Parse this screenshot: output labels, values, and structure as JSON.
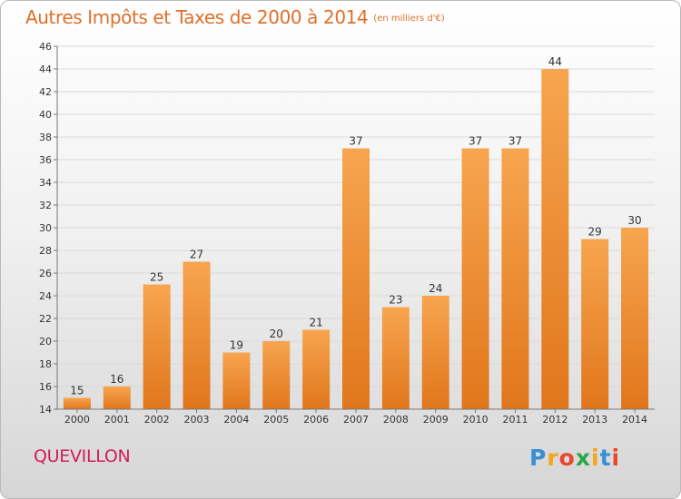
{
  "header": {
    "title": "Autres Impôts et Taxes de 2000 à 2014",
    "subtitle": "(en milliers d'€)"
  },
  "footer": {
    "location": "QUEVILLON",
    "brand_letters": [
      "P",
      "r",
      "o",
      "x",
      "i",
      "t",
      "i"
    ],
    "brand_colors": [
      "#3a8fd6",
      "#f2a51d",
      "#e8482b",
      "#2aa745",
      "#f2a51d",
      "#3a8fd6",
      "#e8482b"
    ]
  },
  "chart_data": {
    "type": "bar",
    "categories": [
      "2000",
      "2001",
      "2002",
      "2003",
      "2004",
      "2005",
      "2006",
      "2007",
      "2008",
      "2009",
      "2010",
      "2011",
      "2012",
      "2013",
      "2014"
    ],
    "values": [
      15,
      16,
      25,
      27,
      19,
      20,
      21,
      37,
      23,
      24,
      37,
      37,
      44,
      29,
      30
    ],
    "ylim": [
      14,
      46
    ],
    "yticks": [
      14,
      16,
      18,
      20,
      22,
      24,
      26,
      28,
      30,
      32,
      34,
      36,
      38,
      40,
      42,
      44,
      46
    ],
    "grid": true,
    "colors": {
      "bar_light": "#f7a54f",
      "bar_dark": "#e0761c",
      "grid": "#d9d9d9"
    }
  }
}
